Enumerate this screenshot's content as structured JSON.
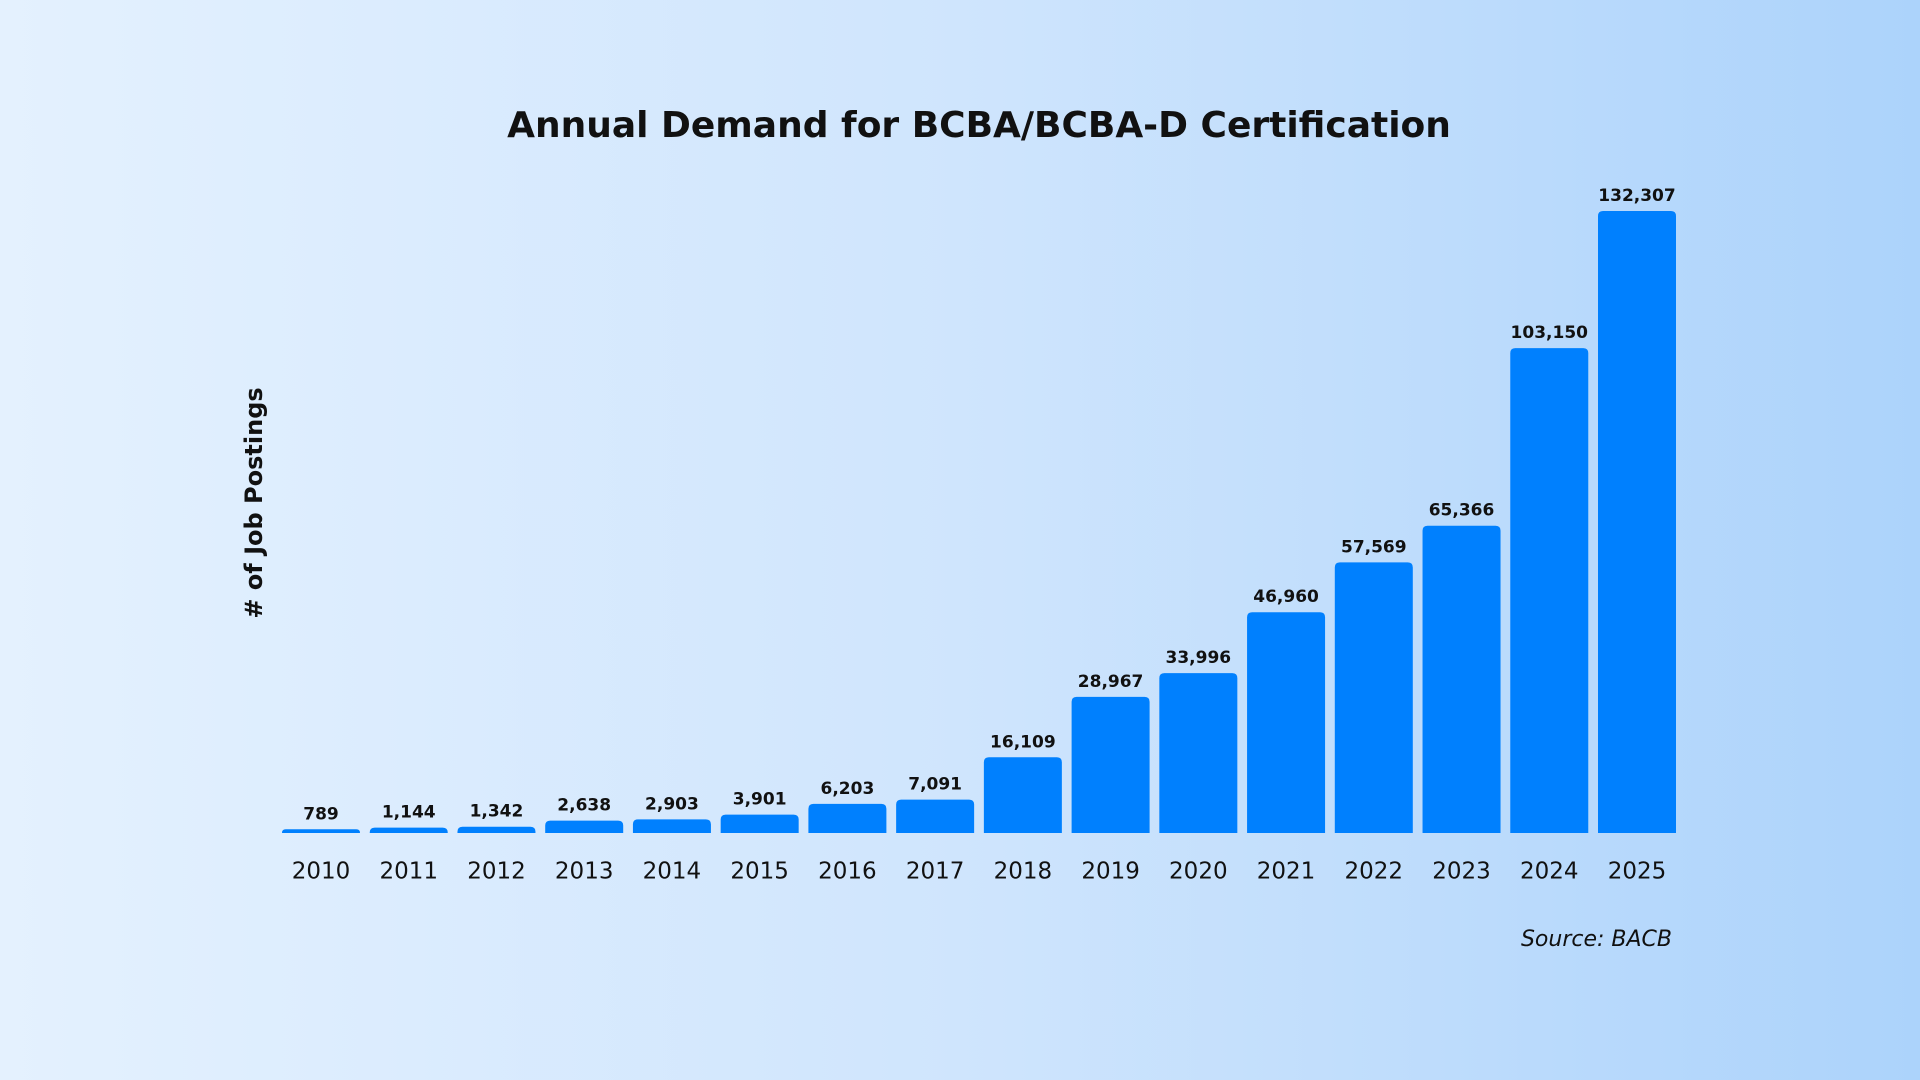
{
  "chart_data": {
    "type": "bar",
    "title": "Annual Demand for BCBA/BCBA-D Certification",
    "y_label": "# of Job Postings",
    "source": "Source: BACB",
    "categories": [
      "2010",
      "2011",
      "2012",
      "2013",
      "2014",
      "2015",
      "2016",
      "2017",
      "2018",
      "2019",
      "2020",
      "2021",
      "2022",
      "2023",
      "2024",
      "2025"
    ],
    "values": [
      789,
      1144,
      1342,
      2638,
      2903,
      3901,
      6203,
      7091,
      16109,
      28967,
      33996,
      46960,
      57569,
      65366,
      103150,
      132307
    ],
    "value_labels": [
      "789",
      "1,144",
      "1,342",
      "2,638",
      "2,903",
      "3,901",
      "6,203",
      "7,091",
      "16,109",
      "28,967",
      "33,996",
      "46,960",
      "57,569",
      "65,366",
      "103,150",
      "132,307"
    ],
    "color": "#0080fe"
  }
}
